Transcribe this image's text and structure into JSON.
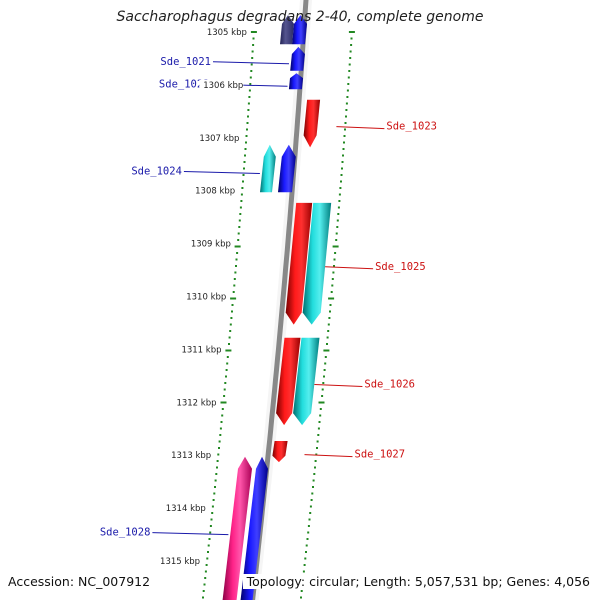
{
  "title": "Saccharophagus degradans 2-40, complete genome",
  "footer": {
    "accession": "Accession: NC_007912",
    "summary": "Topology: circular; Length: 5,057,531 bp; Genes: 4,056"
  },
  "colors": {
    "forward_gene": "#0000ee",
    "reverse_gene": "#ee0000",
    "cyan_feature": "#11cccc",
    "pink_feature": "#ee1177",
    "dark_feature": "#3a3a7a",
    "backbone": "#888888",
    "tick": "#228822",
    "forward_label": "#1a1aaa",
    "reverse_label": "#cc1111"
  },
  "ruler": [
    {
      "label": "1305 kbp",
      "pos_kbp": 1305
    },
    {
      "label": "1306 kbp",
      "pos_kbp": 1306
    },
    {
      "label": "1307 kbp",
      "pos_kbp": 1307
    },
    {
      "label": "1308 kbp",
      "pos_kbp": 1308
    },
    {
      "label": "1309 kbp",
      "pos_kbp": 1309
    },
    {
      "label": "1310 kbp",
      "pos_kbp": 1310
    },
    {
      "label": "1311 kbp",
      "pos_kbp": 1311
    },
    {
      "label": "1312 kbp",
      "pos_kbp": 1312
    },
    {
      "label": "1313 kbp",
      "pos_kbp": 1313
    },
    {
      "label": "1314 kbp",
      "pos_kbp": 1314
    },
    {
      "label": "1315 kbp",
      "pos_kbp": 1315
    }
  ],
  "genes": [
    {
      "name": "",
      "strand": "forward",
      "color": "dark",
      "start_kbp": 1304.7,
      "end_kbp": 1305.25
    },
    {
      "name": "",
      "strand": "forward",
      "color": "blue",
      "start_kbp": 1304.7,
      "end_kbp": 1305.25
    },
    {
      "name": "Sde_1021",
      "strand": "forward",
      "color": "blue",
      "start_kbp": 1305.3,
      "end_kbp": 1305.75
    },
    {
      "name": "Sde_1022",
      "strand": "forward",
      "color": "blue",
      "start_kbp": 1305.8,
      "end_kbp": 1306.1
    },
    {
      "name": "Sde_1023",
      "strand": "reverse",
      "color": "red",
      "start_kbp": 1306.3,
      "end_kbp": 1307.2
    },
    {
      "name": "Sde_1024",
      "strand": "forward",
      "color": "cyan",
      "start_kbp": 1307.15,
      "end_kbp": 1308.05
    },
    {
      "name": "",
      "strand": "forward",
      "color": "blue",
      "start_kbp": 1307.15,
      "end_kbp": 1308.05
    },
    {
      "name": "Sde_1025",
      "strand": "reverse",
      "color": "red",
      "start_kbp": 1308.25,
      "end_kbp": 1310.55
    },
    {
      "name": "",
      "strand": "reverse",
      "color": "cyan",
      "start_kbp": 1308.25,
      "end_kbp": 1310.55
    },
    {
      "name": "Sde_1026",
      "strand": "reverse",
      "color": "red",
      "start_kbp": 1310.8,
      "end_kbp": 1312.45
    },
    {
      "name": "",
      "strand": "reverse",
      "color": "cyan",
      "start_kbp": 1310.8,
      "end_kbp": 1312.45
    },
    {
      "name": "Sde_1027",
      "strand": "reverse",
      "color": "red",
      "start_kbp": 1312.75,
      "end_kbp": 1313.15
    },
    {
      "name": "Sde_1028",
      "strand": "forward",
      "color": "pink",
      "start_kbp": 1313.05,
      "end_kbp": 1315.8
    },
    {
      "name": "",
      "strand": "forward",
      "color": "blue",
      "start_kbp": 1313.05,
      "end_kbp": 1315.8
    }
  ]
}
